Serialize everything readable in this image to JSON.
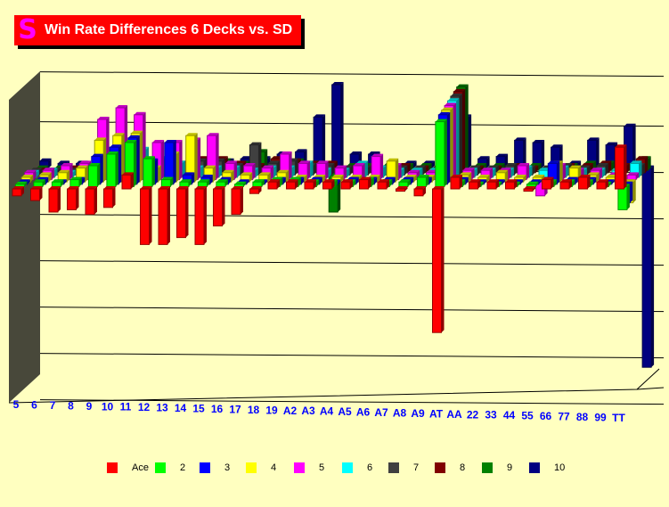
{
  "chart_data": {
    "type": "bar",
    "style": "3d-clustered",
    "title": "Win Rate Differences 6 Decks vs. SD",
    "xlabel": "",
    "ylabel": "",
    "ylim": [
      -4.5,
      2.2
    ],
    "grid": true,
    "legend_position": "bottom",
    "categories": [
      "5",
      "6",
      "7",
      "8",
      "9",
      "10",
      "11",
      "12",
      "13",
      "14",
      "15",
      "16",
      "17",
      "18",
      "19",
      "A2",
      "A3",
      "A4",
      "A5",
      "A6",
      "A7",
      "A8",
      "A9",
      "AT",
      "AA",
      "22",
      "33",
      "44",
      "55",
      "66",
      "77",
      "88",
      "99",
      "TT"
    ],
    "series": [
      {
        "name": "Ace",
        "color": "#ff0000",
        "values": [
          -0.15,
          -0.25,
          -0.5,
          -0.45,
          -0.55,
          -0.4,
          0.3,
          -1.2,
          -1.2,
          -1.05,
          -1.2,
          -0.8,
          -0.55,
          -0.1,
          0.15,
          0.15,
          0.15,
          0.15,
          0.15,
          0.2,
          0.15,
          -0.05,
          -0.15,
          -3.1,
          0.25,
          0.15,
          0.15,
          0.15,
          -0.05,
          0.2,
          0.15,
          0.25,
          0.15,
          0.9
        ]
      },
      {
        "name": "2",
        "color": "#00ff00",
        "values": [
          0.05,
          0.1,
          0.1,
          0.15,
          0.45,
          0.7,
          0.95,
          0.6,
          0.15,
          0.1,
          0.1,
          0.1,
          0.05,
          0.1,
          0.15,
          0.15,
          0.1,
          0.1,
          0.1,
          0.15,
          0.1,
          0.1,
          0.2,
          1.4,
          0.1,
          0.05,
          0.05,
          0.05,
          0.05,
          0.1,
          0.1,
          0.1,
          0.05,
          -0.5
        ]
      },
      {
        "name": "3",
        "color": "#0000ff",
        "values": [
          0.05,
          0.1,
          0.05,
          0.1,
          0.6,
          0.8,
          1.0,
          0.5,
          0.9,
          0.2,
          0.15,
          0.1,
          0.05,
          0.05,
          0.1,
          0.1,
          0.1,
          0.05,
          0.1,
          0.1,
          0.1,
          0.1,
          0.1,
          1.5,
          0.1,
          0.05,
          0.05,
          0.05,
          0.05,
          0.45,
          0.1,
          0.1,
          0.05,
          -0.4
        ]
      },
      {
        "name": "4",
        "color": "#ffff00",
        "values": [
          0.1,
          0.15,
          0.2,
          0.3,
          0.9,
          1.0,
          1.05,
          0.3,
          0.6,
          1.0,
          0.3,
          0.2,
          0.15,
          0.15,
          0.2,
          0.1,
          0.1,
          0.1,
          0.1,
          0.1,
          0.45,
          0.1,
          0.1,
          1.55,
          0.15,
          0.1,
          0.2,
          0.1,
          0.1,
          0.4,
          0.3,
          0.15,
          0.1,
          -0.45
        ]
      },
      {
        "name": "5",
        "color": "#ff00ff",
        "values": [
          0.15,
          0.2,
          0.3,
          0.35,
          1.3,
          1.55,
          1.4,
          0.8,
          0.8,
          0.85,
          0.95,
          0.35,
          0.3,
          0.25,
          0.55,
          0.35,
          0.35,
          0.25,
          0.3,
          0.5,
          0.3,
          0.15,
          0.15,
          1.6,
          0.2,
          0.2,
          0.2,
          0.3,
          -0.35,
          0.3,
          0.2,
          0.2,
          0.1,
          0.1
        ]
      },
      {
        "name": "6",
        "color": "#00ffff",
        "values": [
          0.1,
          0.15,
          0.1,
          0.2,
          0.6,
          0.7,
          0.6,
          0.4,
          0.3,
          0.2,
          0.2,
          0.2,
          0.15,
          0.2,
          0.2,
          0.3,
          0.15,
          0.15,
          0.3,
          0.2,
          0.15,
          0.15,
          0.15,
          1.65,
          0.15,
          0.15,
          0.15,
          0.2,
          0.15,
          0.2,
          0.15,
          0.15,
          0.15,
          0.3
        ]
      },
      {
        "name": "7",
        "color": "#404040",
        "values": [
          0.1,
          0.1,
          0.1,
          0.1,
          0.2,
          0.2,
          0.2,
          0.2,
          0.2,
          0.3,
          0.3,
          0.2,
          0.65,
          0.25,
          0.3,
          0.2,
          0.2,
          0.15,
          0.15,
          0.15,
          0.15,
          0.15,
          0.15,
          1.7,
          0.15,
          0.15,
          0.2,
          0.15,
          0.15,
          0.2,
          0.15,
          0.2,
          0.15,
          0.2
        ]
      },
      {
        "name": "8",
        "color": "#800000",
        "values": [
          0.05,
          0.05,
          0.1,
          0.1,
          0.15,
          0.15,
          0.15,
          0.15,
          0.2,
          0.3,
          0.3,
          0.2,
          0.15,
          0.3,
          0.25,
          0.2,
          0.2,
          0.1,
          0.1,
          0.1,
          0.15,
          0.1,
          0.1,
          1.75,
          0.1,
          0.1,
          0.15,
          0.1,
          0.1,
          0.15,
          0.15,
          0.2,
          0.15,
          0.3
        ]
      },
      {
        "name": "9",
        "color": "#008000",
        "values": [
          0.05,
          0.05,
          0.05,
          0.1,
          0.1,
          0.1,
          0.1,
          0.15,
          0.15,
          0.2,
          0.2,
          0.15,
          0.4,
          0.2,
          0.2,
          0.15,
          -0.9,
          0.1,
          0.1,
          0.1,
          0.1,
          0.1,
          0.1,
          1.8,
          0.1,
          0.1,
          0.1,
          0.1,
          0.1,
          0.1,
          0.15,
          0.15,
          0.1,
          0.25
        ]
      },
      {
        "name": "10",
        "color": "#000080",
        "values": [
          0.15,
          0.1,
          0.1,
          0.1,
          0.1,
          0.1,
          0.1,
          0.1,
          0.1,
          0.15,
          0.15,
          0.2,
          0.2,
          0.3,
          0.35,
          1.1,
          1.8,
          0.3,
          0.3,
          0.1,
          0.1,
          0.1,
          0.15,
          1.1,
          0.2,
          0.25,
          0.6,
          0.55,
          0.45,
          0.1,
          0.6,
          0.5,
          0.9,
          -4.3
        ]
      }
    ]
  },
  "title_icon": "S-logo-icon",
  "title_icon_glyph": "S"
}
